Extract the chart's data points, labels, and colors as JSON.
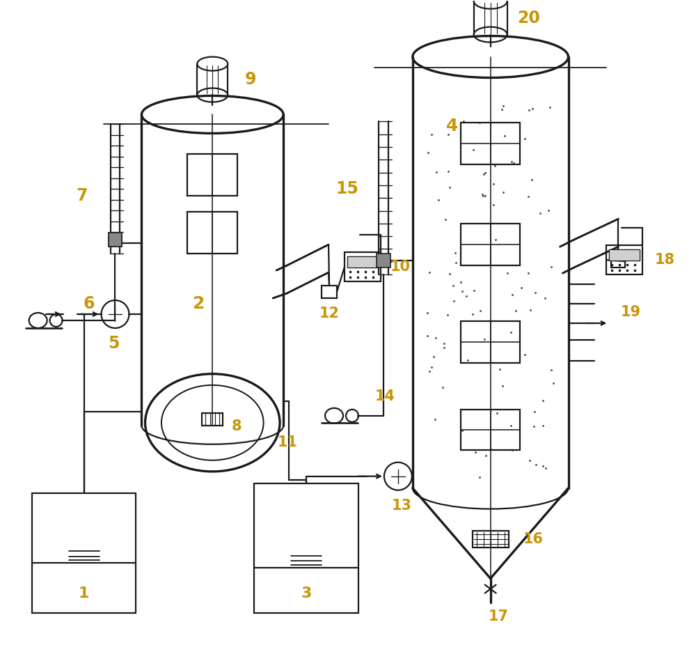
{
  "bg_color": "#ffffff",
  "line_color": "#1a1a1a",
  "label_color": "#c8960a",
  "figsize": [
    10.0,
    9.36
  ],
  "dpi": 100,
  "lw": 1.6,
  "lw_thick": 2.4
}
